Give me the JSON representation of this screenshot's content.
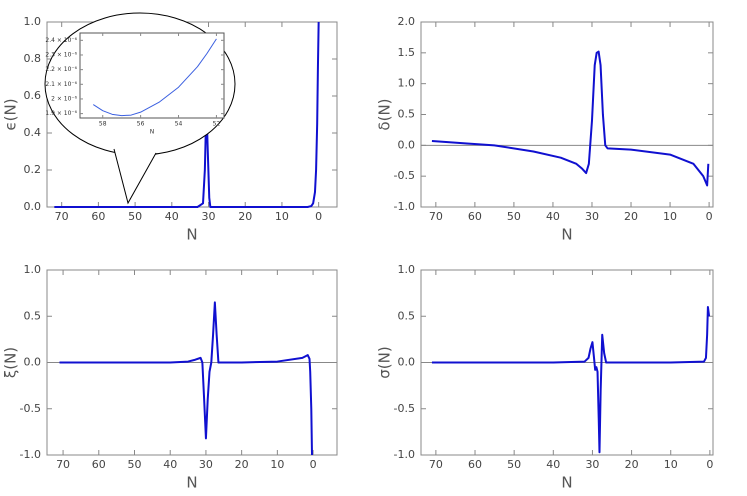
{
  "chart_data": [
    {
      "type": "line",
      "y_label": "ϵ(N)",
      "x_label": "N",
      "color": "#1010d0",
      "xlim": [
        74,
        -5
      ],
      "ylim": [
        0,
        1
      ],
      "xticks": [
        70,
        60,
        50,
        40,
        30,
        20,
        10,
        0
      ],
      "yticks": [
        {
          "value": 0,
          "label": "0.0"
        },
        0.2,
        0.4,
        0.6,
        0.8,
        {
          "value": 1,
          "label": "1.0"
        }
      ],
      "x": [
        72,
        60,
        40,
        33,
        31.5,
        31,
        30.7,
        30.5,
        30.2,
        29.8,
        29.5,
        28,
        10,
        3,
        2,
        1.5,
        1,
        0.7,
        0.4,
        0.2,
        0
      ],
      "values": [
        0,
        0,
        0,
        0,
        0.02,
        0.2,
        0.45,
        0.5,
        0.3,
        0.05,
        0,
        0,
        0,
        0,
        0.005,
        0.02,
        0.08,
        0.2,
        0.45,
        0.75,
        1.0
      ]
    },
    {
      "type": "line",
      "y_label": "δ(N)",
      "x_label": "N",
      "color": "#1010d0",
      "zero_line": true,
      "xlim": [
        73.8,
        -1
      ],
      "ylim": [
        -1,
        2
      ],
      "xticks": [
        70,
        60,
        50,
        40,
        30,
        20,
        10,
        0
      ],
      "yticks": [
        {
          "value": -1,
          "label": "-1.0"
        },
        -0.5,
        {
          "value": 0,
          "label": "0.0"
        },
        0.5,
        {
          "value": 1,
          "label": "1.0"
        },
        1.5,
        {
          "value": 2,
          "label": "2.0"
        }
      ],
      "x": [
        71,
        62,
        55,
        45,
        38,
        34,
        32.5,
        31.5,
        30.8,
        30,
        29.3,
        28.8,
        28.3,
        27.8,
        27.2,
        26.6,
        26,
        20,
        10,
        4,
        1.5,
        0.5,
        0.2
      ],
      "values": [
        0.07,
        0.03,
        0,
        -0.1,
        -0.2,
        -0.3,
        -0.38,
        -0.45,
        -0.3,
        0.4,
        1.3,
        1.5,
        1.52,
        1.3,
        0.5,
        0,
        -0.05,
        -0.07,
        -0.15,
        -0.3,
        -0.5,
        -0.65,
        -0.3
      ]
    },
    {
      "type": "line",
      "y_label": "ξ(N)",
      "x_label": "N",
      "color": "#1010d0",
      "zero_line": true,
      "xlim": [
        74.5,
        -6.7
      ],
      "ylim": [
        -1,
        1
      ],
      "xticks": [
        70,
        60,
        50,
        40,
        30,
        20,
        10,
        0
      ],
      "yticks": [
        {
          "value": -1,
          "label": "-1.0"
        },
        -0.5,
        {
          "value": 0,
          "label": "0.0"
        },
        0.5,
        {
          "value": 1,
          "label": "1.0"
        }
      ],
      "x": [
        71,
        40,
        35,
        33,
        31.5,
        31,
        30.5,
        30,
        29.5,
        29,
        28.5,
        28,
        27.5,
        27,
        26.5,
        20,
        10,
        3,
        1.5,
        1,
        0.8,
        0.5,
        0.3
      ],
      "values": [
        0,
        0,
        0.01,
        0.03,
        0.05,
        0,
        -0.4,
        -0.82,
        -0.4,
        -0.1,
        0,
        0.3,
        0.65,
        0.3,
        0,
        0,
        0.01,
        0.05,
        0.08,
        0.04,
        -0.1,
        -0.5,
        -1
      ]
    },
    {
      "type": "line",
      "y_label": "σ(N)",
      "x_label": "N",
      "color": "#1010d0",
      "zero_line": true,
      "xlim": [
        73.8,
        -0.8
      ],
      "ylim": [
        -1,
        1
      ],
      "xticks": [
        70,
        60,
        50,
        40,
        30,
        20,
        10,
        0
      ],
      "yticks": [
        {
          "value": -1,
          "label": "-1.0"
        },
        -0.5,
        {
          "value": 0,
          "label": "0.0"
        },
        0.5,
        {
          "value": 1,
          "label": "1.0"
        }
      ],
      "x": [
        71,
        40,
        32,
        31,
        30.5,
        30,
        29.6,
        29.3,
        29,
        28.7,
        28.4,
        28.2,
        27.9,
        27.5,
        27,
        26.5,
        10,
        1.5,
        1,
        0.7,
        0.5,
        0.2
      ],
      "values": [
        0,
        0,
        0.01,
        0.05,
        0.15,
        0.22,
        0.05,
        -0.08,
        -0.05,
        -0.1,
        -0.6,
        -0.97,
        -0.3,
        0.3,
        0.1,
        0,
        0,
        0.01,
        0.05,
        0.3,
        0.6,
        0.5
      ]
    },
    {
      "type": "line",
      "x_label": "N",
      "color": "#3a5fe0",
      "xlim": [
        59.2,
        51.6
      ],
      "ylim": [
        1.87e-06,
        2.45e-06
      ],
      "xticks": [
        58,
        56,
        54,
        52
      ],
      "yticks": [
        {
          "value": 1.9e-06,
          "label": "1.9 × 10⁻⁶"
        },
        {
          "value": 2e-06,
          "label": "2 × 10⁻⁶"
        },
        {
          "value": 2.1e-06,
          "label": "2.1 × 10⁻⁶"
        },
        {
          "value": 2.2e-06,
          "label": "2.2 × 10⁻⁶"
        },
        {
          "value": 2.3e-06,
          "label": "2.3 × 10⁻⁶"
        },
        {
          "value": 2.4e-06,
          "label": "2.4 × 10⁻⁶"
        }
      ],
      "x": [
        58.5,
        58,
        57.5,
        57,
        56.5,
        56,
        55,
        54,
        53,
        52.5,
        52
      ],
      "values": [
        1.962e-06,
        1.92e-06,
        1.895e-06,
        1.886e-06,
        1.89e-06,
        1.91e-06,
        1.98e-06,
        2.08e-06,
        2.22e-06,
        2.31e-06,
        2.41e-06
      ]
    }
  ]
}
